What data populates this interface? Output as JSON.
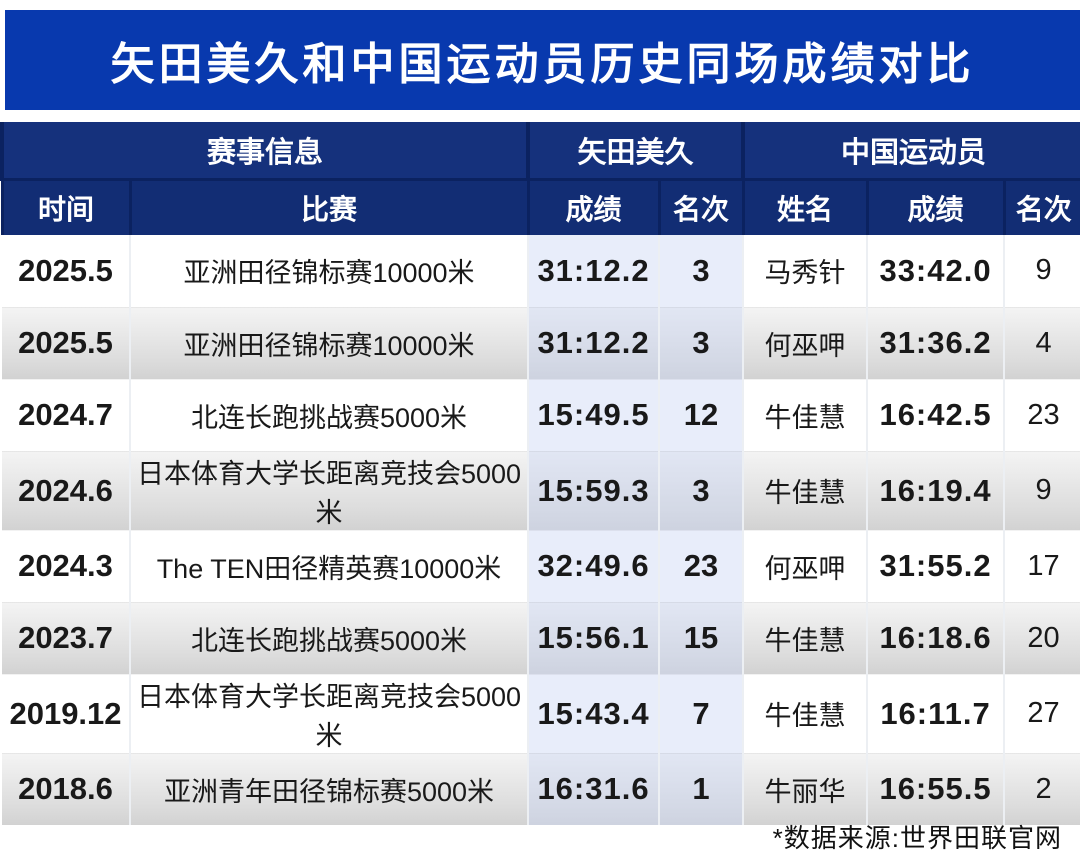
{
  "title": "矢田美久和中国运动员历史同场成绩对比",
  "footer": {
    "source_note": "*数据来源:世界田联官网"
  },
  "colors": {
    "title_bar_blue": "#0839ae",
    "header_navy": "#15317c",
    "header_divider_navy": "#0b2260",
    "highlight_column_tint": "#e9eef9",
    "row_alt_gray_top": "#f4f4f4",
    "row_alt_gray_bottom": "#d2d2d2",
    "text_dark": "#191919"
  },
  "chart_data": {
    "type": "table",
    "title": "矢田美久和中国运动员历史同场成绩对比",
    "group_headers": [
      {
        "label": "赛事信息",
        "colspan": 2
      },
      {
        "label": "矢田美久",
        "colspan": 2
      },
      {
        "label": "中国运动员",
        "colspan": 3
      }
    ],
    "columns": [
      "时间",
      "比赛",
      "成绩",
      "名次",
      "姓名",
      "成绩",
      "名次"
    ],
    "rows": [
      [
        "2025.5",
        "亚洲田径锦标赛10000米",
        "31:12.2",
        "3",
        "马秀针",
        "33:42.0",
        "9"
      ],
      [
        "2025.5",
        "亚洲田径锦标赛10000米",
        "31:12.2",
        "3",
        "何巫呷",
        "31:36.2",
        "4"
      ],
      [
        "2024.7",
        "北连长跑挑战赛5000米",
        "15:49.5",
        "12",
        "牛佳慧",
        "16:42.5",
        "23"
      ],
      [
        "2024.6",
        "日本体育大学长距离竞技会5000米",
        "15:59.3",
        "3",
        "牛佳慧",
        "16:19.4",
        "9"
      ],
      [
        "2024.3",
        "The TEN田径精英赛10000米",
        "32:49.6",
        "23",
        "何巫呷",
        "31:55.2",
        "17"
      ],
      [
        "2023.7",
        "北连长跑挑战赛5000米",
        "15:56.1",
        "15",
        "牛佳慧",
        "16:18.6",
        "20"
      ],
      [
        "2019.12",
        "日本体育大学长距离竞技会5000米",
        "15:43.4",
        "7",
        "牛佳慧",
        "16:11.7",
        "27"
      ],
      [
        "2018.6",
        "亚洲青年田径锦标赛5000米",
        "16:31.6",
        "1",
        "牛丽华",
        "16:55.5",
        "2"
      ]
    ],
    "source_note": "*数据来源:世界田联官网"
  }
}
